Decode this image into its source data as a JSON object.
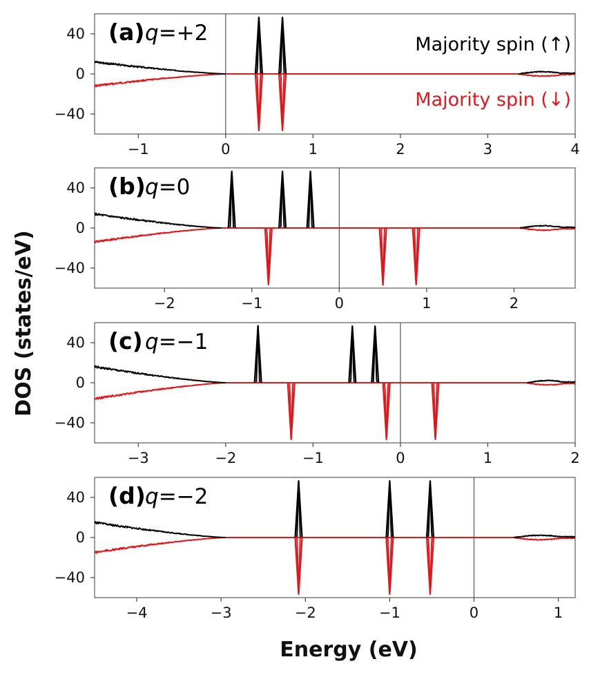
{
  "chart_data": {
    "type": "line",
    "ylabel": "DOS  (states/eV)",
    "xlabel": "Energy (eV)",
    "legend": [
      {
        "label": "Majority spin (↑)",
        "color": "#000000"
      },
      {
        "label": "Majority spin (↓)",
        "color": "#e0181c"
      }
    ],
    "panels": [
      {
        "label": "(a)",
        "q_var": "q",
        "q_text": "=+2",
        "xlim": [
          -1.5,
          4.0
        ],
        "xticks": [
          -1,
          0,
          1,
          2,
          3,
          4
        ],
        "xtick_labels": [
          "−1",
          "0",
          "1",
          "2",
          "3",
          "4"
        ],
        "ylim": [
          -60,
          60
        ],
        "yticks": [
          -40,
          0,
          40
        ],
        "ytick_labels": [
          "−40",
          "0",
          "40"
        ],
        "fermi_level": 0,
        "valence_band_max": 0.0,
        "conduction_band_min": 3.35,
        "band_start_dos": 12,
        "peaks": [
          {
            "spin": "up",
            "energy": 0.38,
            "height": 57
          },
          {
            "spin": "up",
            "energy": 0.65,
            "height": 57
          },
          {
            "spin": "down",
            "energy": 0.38,
            "height": -57
          },
          {
            "spin": "down",
            "energy": 0.65,
            "height": -57
          }
        ]
      },
      {
        "label": "(b)",
        "q_var": "q",
        "q_text": "=0",
        "xlim": [
          -2.8,
          2.7
        ],
        "xticks": [
          -2,
          -1,
          0,
          1,
          2
        ],
        "xtick_labels": [
          "−2",
          "−1",
          "0",
          "1",
          "2"
        ],
        "ylim": [
          -60,
          60
        ],
        "yticks": [
          -40,
          0,
          40
        ],
        "ytick_labels": [
          "−40",
          "0",
          "40"
        ],
        "fermi_level": 0,
        "valence_band_max": -1.35,
        "conduction_band_min": 2.07,
        "band_start_dos": 14,
        "peaks": [
          {
            "spin": "up",
            "energy": -1.23,
            "height": 57
          },
          {
            "spin": "up",
            "energy": -0.65,
            "height": 57
          },
          {
            "spin": "up",
            "energy": -0.33,
            "height": 57
          },
          {
            "spin": "down",
            "energy": -0.81,
            "height": -57
          },
          {
            "spin": "down",
            "energy": 0.5,
            "height": -57
          },
          {
            "spin": "down",
            "energy": 0.88,
            "height": -57
          }
        ]
      },
      {
        "label": "(c)",
        "q_var": "q",
        "q_text": "=−1",
        "xlim": [
          -3.5,
          2.0
        ],
        "xticks": [
          -3,
          -2,
          -1,
          0,
          1,
          2
        ],
        "xtick_labels": [
          "−3",
          "−2",
          "−1",
          "0",
          "1",
          "2"
        ],
        "ylim": [
          -60,
          60
        ],
        "yticks": [
          -40,
          0,
          40
        ],
        "ytick_labels": [
          "−40",
          "0",
          "40"
        ],
        "fermi_level": 0,
        "valence_band_max": -2.0,
        "conduction_band_min": 1.45,
        "band_start_dos": 16,
        "peaks": [
          {
            "spin": "up",
            "energy": -1.63,
            "height": 57
          },
          {
            "spin": "up",
            "energy": -0.55,
            "height": 57
          },
          {
            "spin": "up",
            "energy": -0.29,
            "height": 57
          },
          {
            "spin": "down",
            "energy": -1.25,
            "height": -57
          },
          {
            "spin": "down",
            "energy": -0.16,
            "height": -57
          },
          {
            "spin": "down",
            "energy": 0.4,
            "height": -57
          }
        ]
      },
      {
        "label": "(d)",
        "q_var": "q",
        "q_text": "=−2",
        "xlim": [
          -4.5,
          1.2
        ],
        "xticks": [
          -4,
          -3,
          -2,
          -1,
          0,
          1
        ],
        "xtick_labels": [
          "−4",
          "−3",
          "−2",
          "−1",
          "0",
          "1"
        ],
        "ylim": [
          -60,
          60
        ],
        "yticks": [
          -40,
          0,
          40
        ],
        "ytick_labels": [
          "−40",
          "0",
          "40"
        ],
        "fermi_level": 0,
        "valence_band_max": -2.95,
        "conduction_band_min": 0.47,
        "band_start_dos": 15,
        "peaks": [
          {
            "spin": "up",
            "energy": -2.08,
            "height": 57
          },
          {
            "spin": "up",
            "energy": -1.0,
            "height": 57
          },
          {
            "spin": "up",
            "energy": -0.52,
            "height": 57
          },
          {
            "spin": "down",
            "energy": -2.08,
            "height": -57
          },
          {
            "spin": "down",
            "energy": -1.0,
            "height": -57
          },
          {
            "spin": "down",
            "energy": -0.52,
            "height": -57
          }
        ]
      }
    ]
  }
}
